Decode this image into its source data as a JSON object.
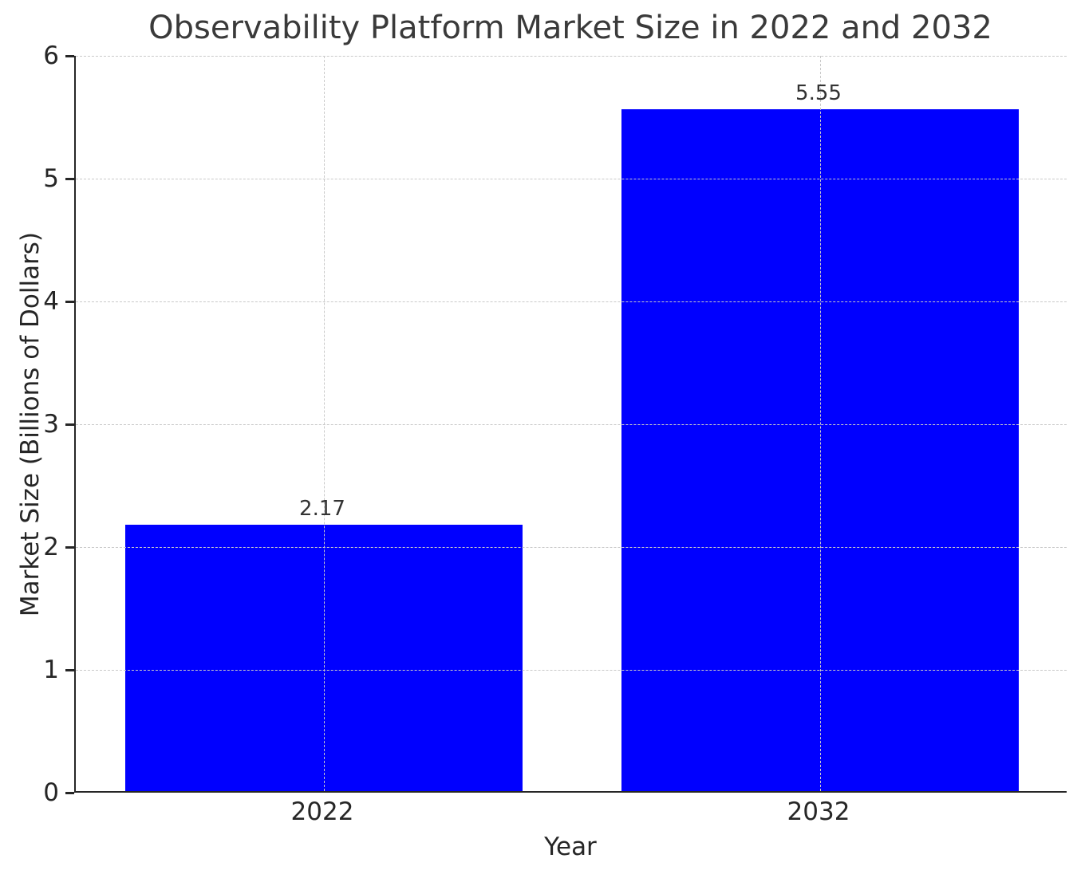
{
  "chart_data": {
    "type": "bar",
    "title": "Observability Platform Market Size in 2022 and 2032",
    "xlabel": "Year",
    "ylabel": "Market Size (Billions of Dollars)",
    "categories": [
      "2022",
      "2032"
    ],
    "values": [
      2.17,
      5.55
    ],
    "value_labels": [
      "2.17",
      "5.55"
    ],
    "ylim": [
      0,
      6
    ],
    "yticks": [
      0,
      1,
      2,
      3,
      4,
      5,
      6
    ],
    "bar_color": "#0000ff",
    "grid": "dashed, drawn above bars, horizontal at each y tick and vertical at each category center",
    "grid_color": "#c9c9c9",
    "axis_color": "#262626",
    "text_color": "#262626",
    "legend": "none"
  }
}
